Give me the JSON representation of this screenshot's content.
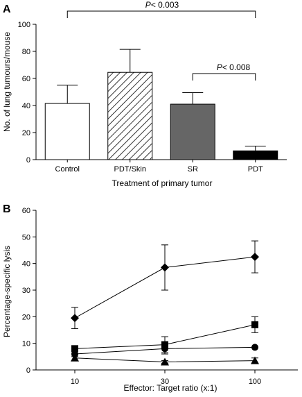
{
  "chart_data": [
    {
      "type": "bar",
      "panel_label": "A",
      "categories": [
        "Control",
        "PDT/Skin",
        "SR",
        "PDT"
      ],
      "values": [
        41.5,
        64.5,
        41,
        6.5
      ],
      "errors": [
        13.5,
        17,
        8.5,
        3.5
      ],
      "bar_fills": [
        "white",
        "hatched",
        "#666666",
        "#000000"
      ],
      "xlabel": "Treatment of primary tumor",
      "ylabel": "No. of lung tumours/mouse",
      "ylim": [
        0,
        100
      ],
      "yticks": [
        0,
        20,
        40,
        60,
        80,
        100
      ],
      "grid": false,
      "annotations": [
        {
          "from": "Control",
          "to": "PDT",
          "p_symbol": "P",
          "text": "< 0.003"
        },
        {
          "from": "SR",
          "to": "PDT",
          "p_symbol": "P",
          "text": "< 0.008"
        }
      ]
    },
    {
      "type": "line",
      "panel_label": "B",
      "x": [
        10,
        30,
        100
      ],
      "xticks": [
        "10",
        "30",
        "100"
      ],
      "xlabel": "Effector: Target ratio (x:1)",
      "ylabel": "Percentage-specific lysis",
      "ylim": [
        0,
        60
      ],
      "yticks": [
        0,
        10,
        20,
        30,
        40,
        50,
        60
      ],
      "grid": false,
      "series": [
        {
          "marker": "diamond",
          "values": [
            19.5,
            38.5,
            42.5
          ],
          "errors": [
            4,
            8.5,
            6
          ]
        },
        {
          "marker": "square",
          "values": [
            8,
            9.5,
            17
          ],
          "errors": [
            1,
            3,
            3
          ]
        },
        {
          "marker": "circle",
          "values": [
            6,
            8,
            8.5
          ],
          "errors": [
            1,
            2,
            0
          ]
        },
        {
          "marker": "triangle",
          "values": [
            4.5,
            3,
            3.5
          ],
          "errors": [
            1,
            0.5,
            1
          ]
        }
      ]
    }
  ]
}
